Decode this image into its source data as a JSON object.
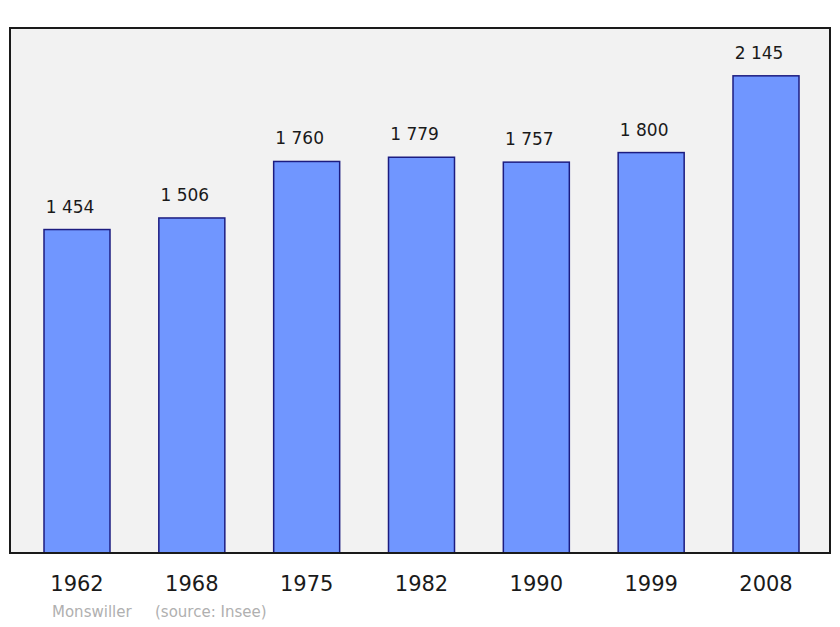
{
  "chart_data": {
    "type": "bar",
    "title": "Monswiller",
    "annotations": [
      "(source: Insee)"
    ],
    "categories": [
      "1962",
      "1968",
      "1975",
      "1982",
      "1990",
      "1999",
      "2008"
    ],
    "values": [
      1454,
      1506,
      1760,
      1779,
      1757,
      1800,
      2145
    ],
    "value_labels": [
      "1 454",
      "1 506",
      "1 760",
      "1 779",
      "1 757",
      "1 800",
      "2 145"
    ],
    "color": "#7096ff",
    "ylim": [
      0,
      2360
    ],
    "grid": false,
    "data_labels": true,
    "tick_labels": "x"
  }
}
